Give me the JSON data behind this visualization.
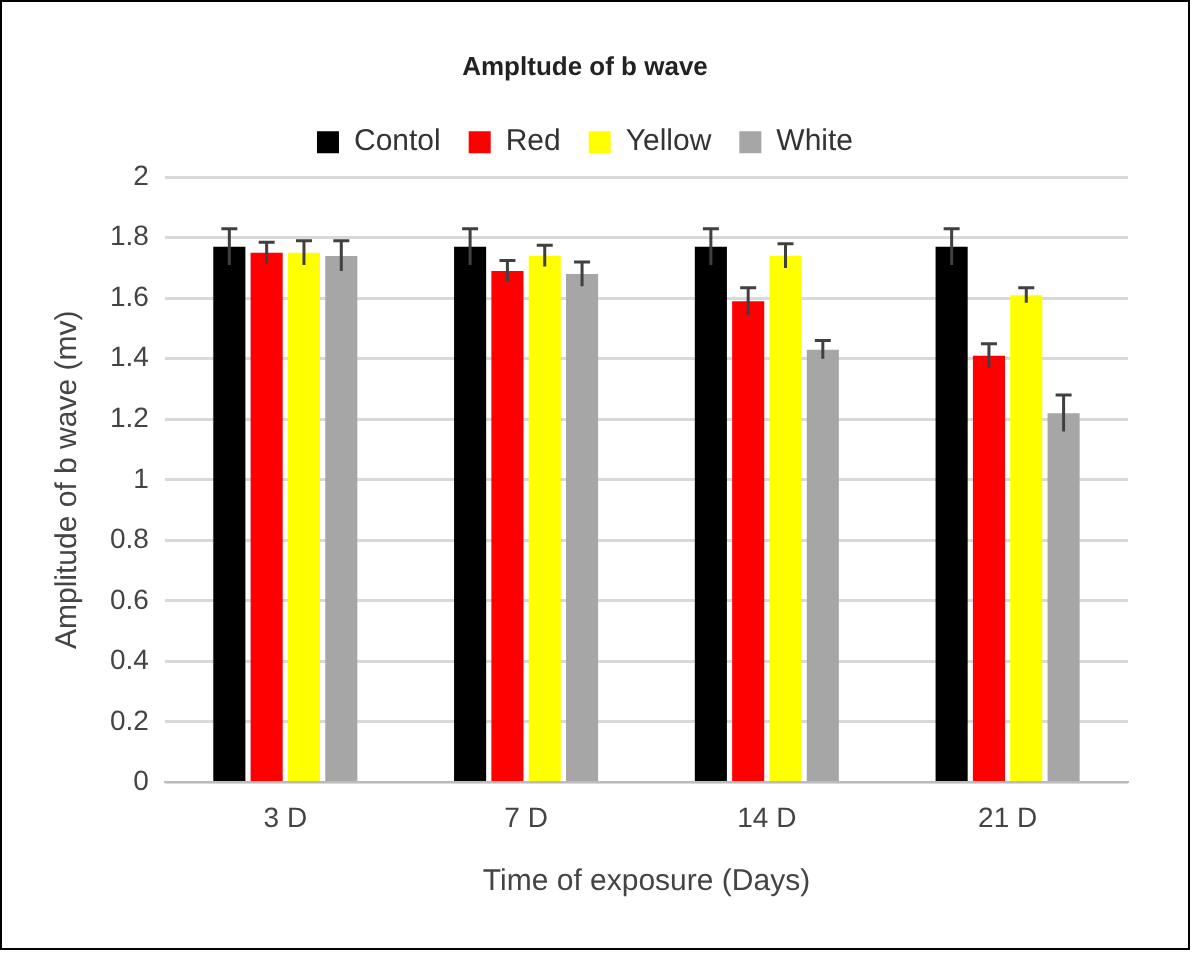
{
  "chart_data": {
    "type": "bar",
    "title": "Ampltude of b wave",
    "xlabel": "Time of exposure (Days)",
    "ylabel": "Amplitude of b wave (mv)",
    "categories": [
      "3 D",
      "7 D",
      "14 D",
      "21 D"
    ],
    "series": [
      {
        "name": "Contol",
        "color": "#000000",
        "values": [
          1.77,
          1.77,
          1.77,
          1.77
        ],
        "errors": [
          0.06,
          0.06,
          0.06,
          0.06
        ]
      },
      {
        "name": "Red",
        "color": "#ff0000",
        "values": [
          1.75,
          1.69,
          1.59,
          1.41
        ],
        "errors": [
          0.035,
          0.035,
          0.045,
          0.04
        ]
      },
      {
        "name": "Yellow",
        "color": "#ffff00",
        "values": [
          1.75,
          1.74,
          1.74,
          1.61
        ],
        "errors": [
          0.04,
          0.035,
          0.04,
          0.025
        ]
      },
      {
        "name": "White",
        "color": "#a6a6a6",
        "values": [
          1.74,
          1.68,
          1.43,
          1.22
        ],
        "errors": [
          0.05,
          0.04,
          0.03,
          0.06
        ]
      }
    ],
    "ylim": [
      0,
      2
    ],
    "yticks": [
      0,
      0.2,
      0.4,
      0.6,
      0.8,
      1,
      1.2,
      1.4,
      1.6,
      1.8,
      2
    ],
    "grid": "y",
    "legend": "top"
  }
}
